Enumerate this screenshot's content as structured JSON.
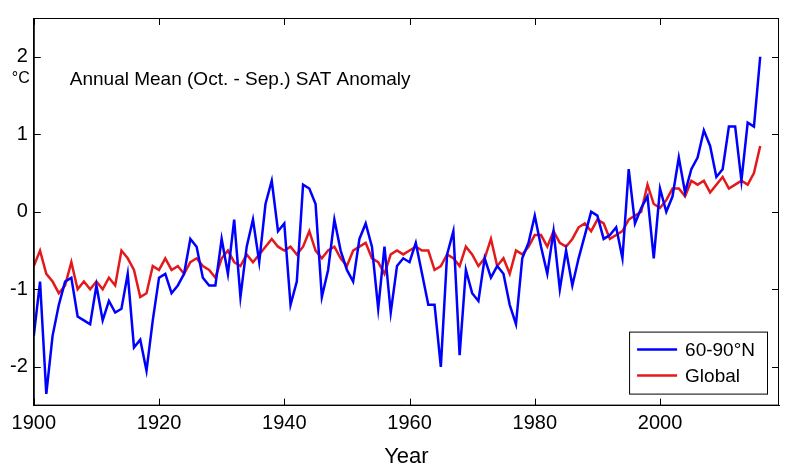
{
  "chart_data": {
    "type": "line",
    "title": "Annual Mean (Oct. - Sep.) SAT Anomaly",
    "xlabel": "Year",
    "ylabel": "°C",
    "x": [
      1900,
      1901,
      1902,
      1903,
      1904,
      1905,
      1906,
      1907,
      1908,
      1909,
      1910,
      1911,
      1912,
      1913,
      1914,
      1915,
      1916,
      1917,
      1918,
      1919,
      1920,
      1921,
      1922,
      1923,
      1924,
      1925,
      1926,
      1927,
      1928,
      1929,
      1930,
      1931,
      1932,
      1933,
      1934,
      1935,
      1936,
      1937,
      1938,
      1939,
      1940,
      1941,
      1942,
      1943,
      1944,
      1945,
      1946,
      1947,
      1948,
      1949,
      1950,
      1951,
      1952,
      1953,
      1954,
      1955,
      1956,
      1957,
      1958,
      1959,
      1960,
      1961,
      1962,
      1963,
      1964,
      1965,
      1966,
      1967,
      1968,
      1969,
      1970,
      1971,
      1972,
      1973,
      1974,
      1975,
      1976,
      1977,
      1978,
      1979,
      1980,
      1981,
      1982,
      1983,
      1984,
      1985,
      1986,
      1987,
      1988,
      1989,
      1990,
      1991,
      1992,
      1993,
      1994,
      1995,
      1996,
      1997,
      1998,
      1999,
      2000,
      2001,
      2002,
      2003,
      2004,
      2005,
      2006,
      2007,
      2008,
      2009,
      2010,
      2011,
      2012,
      2013,
      2014,
      2015,
      2016
    ],
    "series": [
      {
        "name": "60-90°N",
        "color": "#0000ff",
        "values": [
          -1.6,
          -0.9,
          -2.35,
          -1.6,
          -1.2,
          -0.9,
          -0.85,
          -1.35,
          -1.4,
          -1.45,
          -0.95,
          -1.4,
          -1.15,
          -1.3,
          -1.25,
          -0.8,
          -1.75,
          -1.65,
          -2.05,
          -1.4,
          -0.85,
          -0.8,
          -1.05,
          -0.95,
          -0.8,
          -0.35,
          -0.45,
          -0.85,
          -0.95,
          -0.95,
          -0.35,
          -0.8,
          -0.1,
          -1.1,
          -0.45,
          -0.1,
          -0.65,
          0.1,
          0.4,
          -0.25,
          -0.15,
          -1.2,
          -0.9,
          0.35,
          0.3,
          0.1,
          -1.1,
          -0.75,
          -0.1,
          -0.5,
          -0.75,
          -0.9,
          -0.35,
          -0.15,
          -0.45,
          -1.25,
          -0.45,
          -1.3,
          -0.7,
          -0.6,
          -0.65,
          -0.4,
          -0.8,
          -1.2,
          -1.2,
          -2.0,
          -0.55,
          -0.25,
          -1.85,
          -0.75,
          -1.05,
          -1.15,
          -0.6,
          -0.85,
          -0.7,
          -0.8,
          -1.2,
          -1.45,
          -0.6,
          -0.4,
          -0.05,
          -0.45,
          -0.8,
          -0.25,
          -1.0,
          -0.5,
          -0.95,
          -0.6,
          -0.3,
          0.0,
          -0.05,
          -0.35,
          -0.3,
          -0.2,
          -0.6,
          0.55,
          -0.15,
          0.05,
          0.2,
          -0.6,
          0.3,
          0.0,
          0.2,
          0.7,
          0.25,
          0.55,
          0.7,
          1.05,
          0.85,
          0.45,
          0.55,
          1.1,
          1.1,
          0.4,
          1.15,
          1.1,
          2.0
        ]
      },
      {
        "name": "Global",
        "color": "#e31a1c",
        "values": [
          -0.7,
          -0.5,
          -0.8,
          -0.9,
          -1.05,
          -0.95,
          -0.65,
          -1.0,
          -0.9,
          -1.0,
          -0.9,
          -1.0,
          -0.85,
          -0.95,
          -0.5,
          -0.6,
          -0.75,
          -1.1,
          -1.05,
          -0.7,
          -0.75,
          -0.6,
          -0.75,
          -0.7,
          -0.8,
          -0.65,
          -0.6,
          -0.7,
          -0.75,
          -0.85,
          -0.6,
          -0.5,
          -0.65,
          -0.7,
          -0.55,
          -0.65,
          -0.55,
          -0.45,
          -0.35,
          -0.45,
          -0.5,
          -0.45,
          -0.55,
          -0.45,
          -0.25,
          -0.5,
          -0.6,
          -0.5,
          -0.45,
          -0.6,
          -0.7,
          -0.5,
          -0.45,
          -0.4,
          -0.6,
          -0.65,
          -0.8,
          -0.55,
          -0.5,
          -0.55,
          -0.5,
          -0.45,
          -0.5,
          -0.5,
          -0.75,
          -0.7,
          -0.55,
          -0.6,
          -0.7,
          -0.45,
          -0.55,
          -0.7,
          -0.6,
          -0.35,
          -0.7,
          -0.6,
          -0.8,
          -0.5,
          -0.55,
          -0.45,
          -0.3,
          -0.3,
          -0.45,
          -0.25,
          -0.4,
          -0.45,
          -0.35,
          -0.2,
          -0.15,
          -0.25,
          -0.1,
          -0.15,
          -0.35,
          -0.3,
          -0.25,
          -0.1,
          -0.05,
          0.0,
          0.35,
          0.1,
          0.05,
          0.15,
          0.3,
          0.3,
          0.2,
          0.4,
          0.35,
          0.4,
          0.25,
          0.35,
          0.45,
          0.3,
          0.35,
          0.4,
          0.35,
          0.5,
          0.85
        ]
      }
    ],
    "xlim": [
      1900,
      2019
    ],
    "xticks": [
      1900,
      1920,
      1940,
      1960,
      1980,
      2000
    ],
    "ylim": [
      -2.5,
      2.5
    ],
    "yticks": [
      -2,
      -1,
      0,
      1,
      2
    ],
    "grid": false,
    "legend": "lower right"
  }
}
